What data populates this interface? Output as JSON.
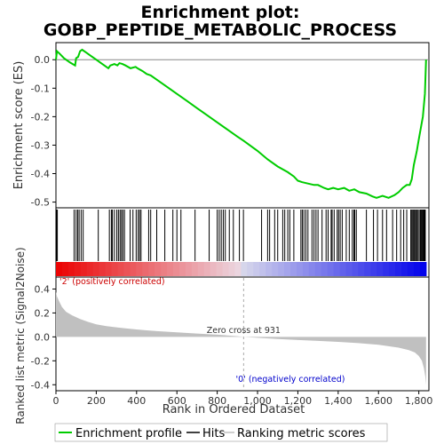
{
  "title_line1": "Enrichment plot:",
  "title_line2": "GOBP_PEPTIDE_METABOLIC_PROCESS",
  "legend": {
    "enrichment": "Enrichment profile",
    "hits": "Hits",
    "ranking": "Ranking metric scores"
  },
  "colors": {
    "profile": "#00cc00",
    "hits": "#000000",
    "ranking_fill": "#c0c0c0",
    "pos_label": "#cc0000",
    "neg_label": "#0000cc"
  },
  "chart_data": [
    {
      "type": "line",
      "name": "enrichment-profile",
      "ylabel": "Enrichment score (ES)",
      "xlim": [
        0,
        1850
      ],
      "ylim": [
        -0.52,
        0.06
      ],
      "yticks": [
        0.0,
        -0.1,
        -0.2,
        -0.3,
        -0.4,
        -0.5
      ],
      "ytick_labels": [
        "0.0",
        "-0.1",
        "-0.2",
        "-0.3",
        "-0.4",
        "-0.5"
      ],
      "grid": false,
      "points": [
        [
          0,
          0.0
        ],
        [
          5,
          0.03
        ],
        [
          20,
          0.02
        ],
        [
          40,
          0.005
        ],
        [
          70,
          -0.01
        ],
        [
          95,
          -0.02
        ],
        [
          100,
          0.005
        ],
        [
          110,
          0.01
        ],
        [
          120,
          0.03
        ],
        [
          130,
          0.035
        ],
        [
          150,
          0.025
        ],
        [
          170,
          0.015
        ],
        [
          200,
          0.0
        ],
        [
          220,
          -0.01
        ],
        [
          240,
          -0.02
        ],
        [
          260,
          -0.03
        ],
        [
          270,
          -0.02
        ],
        [
          290,
          -0.015
        ],
        [
          305,
          -0.02
        ],
        [
          315,
          -0.012
        ],
        [
          330,
          -0.015
        ],
        [
          345,
          -0.02
        ],
        [
          370,
          -0.03
        ],
        [
          395,
          -0.025
        ],
        [
          405,
          -0.03
        ],
        [
          430,
          -0.04
        ],
        [
          450,
          -0.05
        ],
        [
          470,
          -0.055
        ],
        [
          500,
          -0.07
        ],
        [
          550,
          -0.095
        ],
        [
          600,
          -0.12
        ],
        [
          650,
          -0.145
        ],
        [
          700,
          -0.17
        ],
        [
          750,
          -0.195
        ],
        [
          800,
          -0.22
        ],
        [
          850,
          -0.245
        ],
        [
          900,
          -0.27
        ],
        [
          931,
          -0.285
        ],
        [
          1000,
          -0.32
        ],
        [
          1050,
          -0.35
        ],
        [
          1100,
          -0.375
        ],
        [
          1150,
          -0.395
        ],
        [
          1180,
          -0.41
        ],
        [
          1200,
          -0.425
        ],
        [
          1220,
          -0.43
        ],
        [
          1250,
          -0.435
        ],
        [
          1280,
          -0.44
        ],
        [
          1300,
          -0.44
        ],
        [
          1330,
          -0.45
        ],
        [
          1350,
          -0.455
        ],
        [
          1375,
          -0.45
        ],
        [
          1400,
          -0.455
        ],
        [
          1430,
          -0.45
        ],
        [
          1455,
          -0.46
        ],
        [
          1480,
          -0.455
        ],
        [
          1505,
          -0.465
        ],
        [
          1540,
          -0.47
        ],
        [
          1570,
          -0.48
        ],
        [
          1590,
          -0.485
        ],
        [
          1620,
          -0.478
        ],
        [
          1650,
          -0.485
        ],
        [
          1680,
          -0.475
        ],
        [
          1700,
          -0.465
        ],
        [
          1720,
          -0.45
        ],
        [
          1740,
          -0.44
        ],
        [
          1755,
          -0.44
        ],
        [
          1765,
          -0.42
        ],
        [
          1775,
          -0.37
        ],
        [
          1790,
          -0.32
        ],
        [
          1800,
          -0.28
        ],
        [
          1810,
          -0.24
        ],
        [
          1820,
          -0.2
        ],
        [
          1830,
          -0.12
        ],
        [
          1836,
          0.0
        ]
      ]
    },
    {
      "type": "table",
      "name": "hits",
      "x": [
        3,
        7,
        90,
        100,
        108,
        115,
        125,
        135,
        210,
        265,
        275,
        280,
        290,
        302,
        310,
        318,
        325,
        332,
        340,
        368,
        382,
        398,
        408,
        415,
        422,
        460,
        470,
        500,
        540,
        580,
        600,
        620,
        690,
        760,
        800,
        810,
        820,
        830,
        840,
        860,
        880,
        910,
        930,
        1020,
        1050,
        1060,
        1085,
        1100,
        1125,
        1135,
        1150,
        1160,
        1180,
        1215,
        1222,
        1230,
        1240,
        1250,
        1270,
        1280,
        1290,
        1300,
        1320,
        1340,
        1350,
        1365,
        1370,
        1380,
        1395,
        1402,
        1410,
        1420,
        1440,
        1455,
        1470,
        1478,
        1482,
        1490,
        1540,
        1575,
        1595,
        1620,
        1640,
        1670,
        1690,
        1710,
        1725,
        1740,
        1760,
        1765,
        1770,
        1775,
        1780,
        1785,
        1790,
        1796,
        1802,
        1808,
        1812,
        1816,
        1820,
        1824,
        1828,
        1832
      ]
    },
    {
      "type": "area",
      "name": "ranking-metric",
      "ylabel": "Ranked list metric (Signal2Noise)",
      "xlabel": "Rank in Ordered Dataset",
      "xlim": [
        0,
        1850
      ],
      "ylim": [
        -0.45,
        0.5
      ],
      "xticks": [
        0,
        200,
        400,
        600,
        800,
        1000,
        1200,
        1400,
        1600,
        1800
      ],
      "xtick_labels": [
        "0",
        "200",
        "400",
        "600",
        "800",
        "1,000",
        "1,200",
        "1,400",
        "1,600",
        "1,800"
      ],
      "yticks": [
        0.4,
        0.2,
        0.0,
        -0.2,
        -0.4
      ],
      "ytick_labels": [
        "0.4",
        "0.2",
        "0.0",
        "-0.2",
        "-0.4"
      ],
      "points": [
        [
          0,
          0.38
        ],
        [
          5,
          0.34
        ],
        [
          15,
          0.3
        ],
        [
          30,
          0.25
        ],
        [
          50,
          0.21
        ],
        [
          80,
          0.18
        ],
        [
          120,
          0.15
        ],
        [
          160,
          0.125
        ],
        [
          200,
          0.105
        ],
        [
          250,
          0.09
        ],
        [
          300,
          0.08
        ],
        [
          350,
          0.07
        ],
        [
          400,
          0.062
        ],
        [
          450,
          0.055
        ],
        [
          500,
          0.048
        ],
        [
          600,
          0.038
        ],
        [
          700,
          0.028
        ],
        [
          800,
          0.018
        ],
        [
          900,
          0.006
        ],
        [
          931,
          0.0
        ],
        [
          1000,
          -0.008
        ],
        [
          1100,
          -0.018
        ],
        [
          1200,
          -0.026
        ],
        [
          1300,
          -0.034
        ],
        [
          1400,
          -0.042
        ],
        [
          1500,
          -0.052
        ],
        [
          1600,
          -0.066
        ],
        [
          1650,
          -0.078
        ],
        [
          1700,
          -0.09
        ],
        [
          1750,
          -0.11
        ],
        [
          1780,
          -0.13
        ],
        [
          1800,
          -0.16
        ],
        [
          1815,
          -0.2
        ],
        [
          1825,
          -0.26
        ],
        [
          1832,
          -0.33
        ],
        [
          1836,
          -0.4
        ]
      ],
      "zero_cross_label": "Zero cross at 931",
      "zero_cross": 931,
      "pos_label": "'2' (positively correlated)",
      "neg_label": "'0' (negatively correlated)"
    }
  ]
}
